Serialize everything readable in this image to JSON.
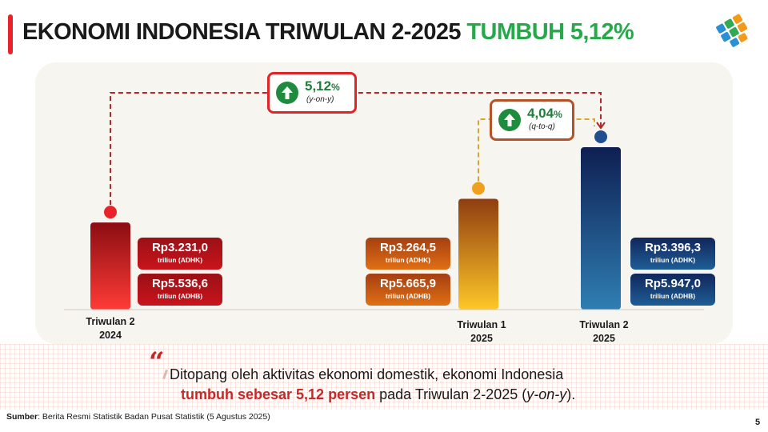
{
  "header": {
    "title_main": "EKONOMI INDONESIA TRIWULAN 2-2025",
    "title_accent": "TUMBUH 5,12%"
  },
  "logo": {
    "icon": "bps-logo-icon"
  },
  "growth": {
    "yoy": {
      "value": "5,12",
      "unit": "%",
      "label": "(y-on-y)",
      "icon": "arrow-up-icon"
    },
    "qtq": {
      "value": "4,04",
      "unit": "%",
      "label": "(q-to-q)",
      "icon": "arrow-up-icon"
    }
  },
  "chart_data": {
    "type": "bar",
    "categories": [
      "Triwulan 2 2024",
      "Triwulan 1 2025",
      "Triwulan 2 2025"
    ],
    "series": [
      {
        "name": "ADHK",
        "values": [
          3231.0,
          3264.5,
          3396.3
        ]
      },
      {
        "name": "ADHB",
        "values": [
          5536.6,
          5665.9,
          5947.0
        ]
      }
    ],
    "bar_series": "ADHB",
    "grid": false
  },
  "periods": [
    {
      "label_line1": "Triwulan 2",
      "label_line2": "2024",
      "adhk": "Rp3.231,0",
      "adhk_unit": "triliun (ADHK)",
      "adhb": "Rp5.536,6",
      "adhb_unit": "triliun (ADHB)",
      "colors": {
        "bar_top": "#8b0d12",
        "bar_bottom": "#ff3b36",
        "box_top": "#9b1016",
        "box_bottom": "#c9141c",
        "dot": "#e8232a"
      }
    },
    {
      "label_line1": "Triwulan 1",
      "label_line2": "2025",
      "adhk": "Rp3.264,5",
      "adhk_unit": "triliun (ADHK)",
      "adhb": "Rp5.665,9",
      "adhb_unit": "triliun (ADHB)",
      "colors": {
        "bar_top": "#8f3d10",
        "bar_bottom": "#ffc728",
        "box_top": "#a53f12",
        "box_bottom": "#e06f14",
        "dot": "#f0a020"
      }
    },
    {
      "label_line1": "Triwulan 2",
      "label_line2": "2025",
      "adhk": "Rp3.396,3",
      "adhk_unit": "triliun (ADHK)",
      "adhb": "Rp5.947,0",
      "adhb_unit": "triliun (ADHB)",
      "colors": {
        "bar_top": "#0e1f52",
        "bar_bottom": "#2f7eb3",
        "box_top": "#10275c",
        "box_bottom": "#1f5d95",
        "dot": "#1f4f8f"
      }
    }
  ],
  "summary": {
    "line1": "Ditopang oleh aktivitas ekonomi domestik, ekonomi Indonesia",
    "line2_highlight": "tumbuh sebesar 5,12 persen",
    "line2_rest_a": " pada Triwulan 2-2025 (",
    "line2_italic": "y-on-y",
    "line2_rest_b": ")."
  },
  "source": {
    "label": "Sumber",
    "text": ": Berita Resmi Statistik Badan Pusat Statistik (5 Agustus 2025)"
  },
  "page_number": "5",
  "colors": {
    "accent_green": "#27a84a",
    "accent_red": "#e8232a",
    "connector_yoy": "#b3262b",
    "connector_qtq": "#d9a52b",
    "qtq_box_border": "#b4532a"
  }
}
